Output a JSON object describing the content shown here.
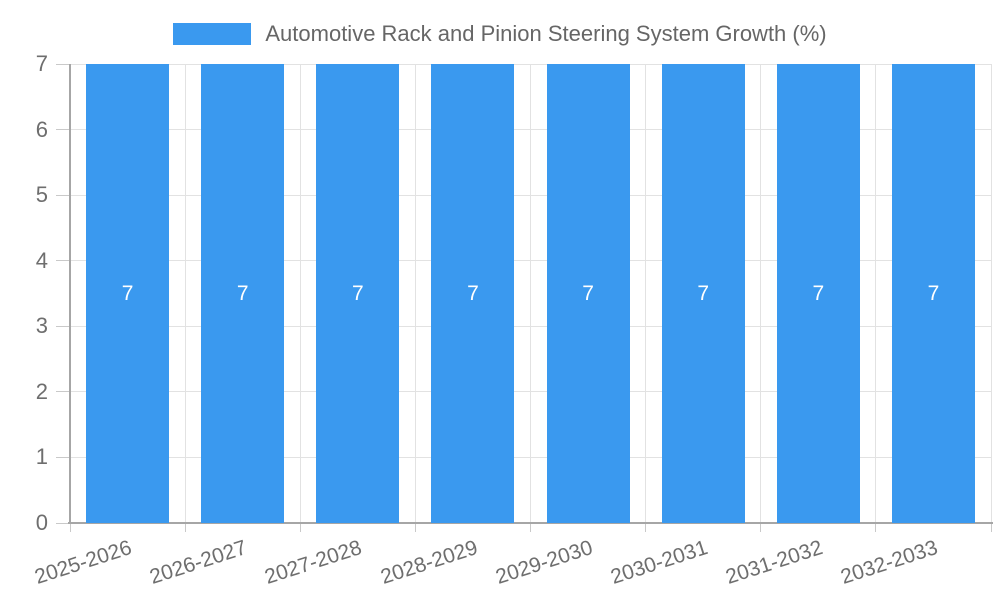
{
  "chart_data": {
    "type": "bar",
    "title": "Automotive Rack and Pinion Steering System Growth (%)",
    "categories": [
      "2025-2026",
      "2026-2027",
      "2027-2028",
      "2028-2029",
      "2029-2030",
      "2030-2031",
      "2031-2032",
      "2032-2033"
    ],
    "values": [
      7,
      7,
      7,
      7,
      7,
      7,
      7,
      7
    ],
    "value_labels": [
      "7",
      "7",
      "7",
      "7",
      "7",
      "7",
      "7",
      "7"
    ],
    "ylim": [
      0,
      7
    ],
    "yticks": [
      0,
      1,
      2,
      3,
      4,
      5,
      6,
      7
    ],
    "xlabel": "",
    "ylabel": "",
    "grid": true,
    "legend_position": "top",
    "colors": {
      "bar": "#3a99ef",
      "value_label": "#ffffff",
      "grid": "#e2e2e2",
      "axis": "#a6a6a6",
      "tick": "#c9c9c9",
      "label_text": "#6e6e6e",
      "title_text": "#666666"
    }
  }
}
